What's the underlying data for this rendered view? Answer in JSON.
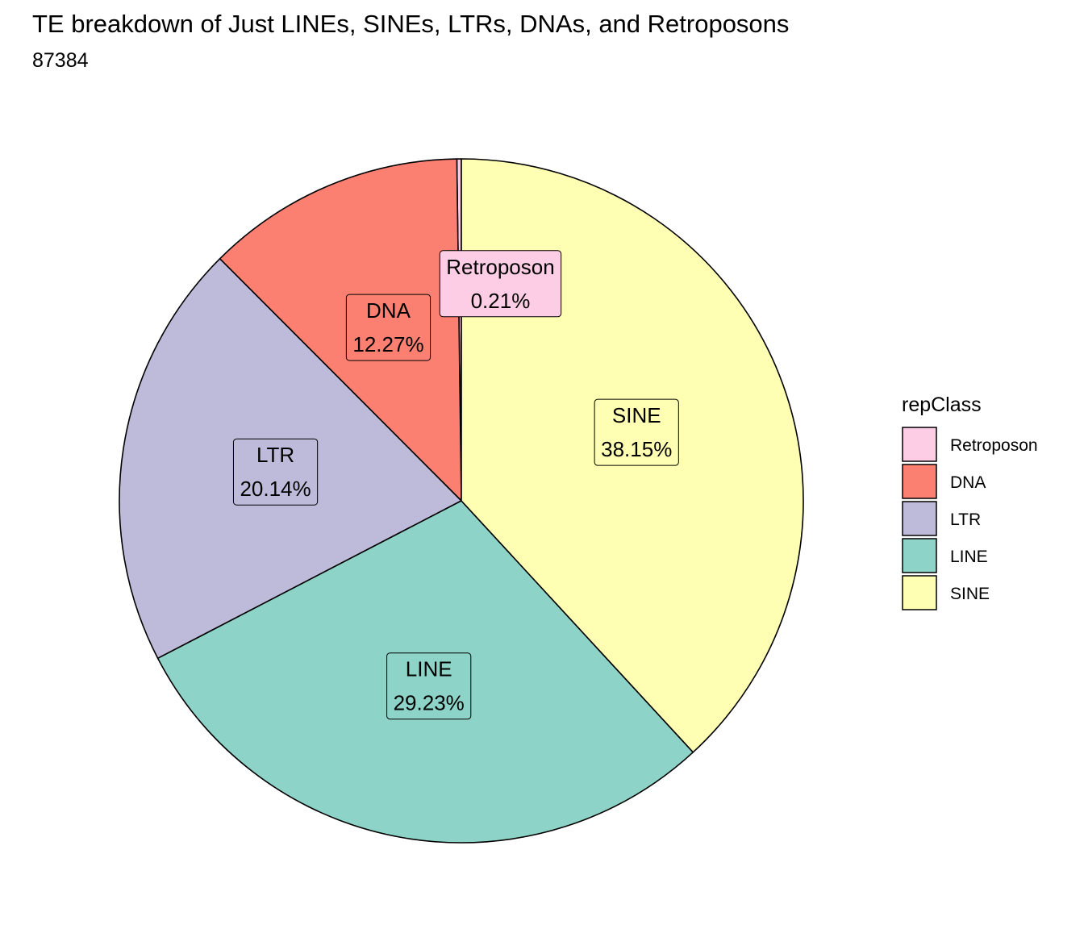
{
  "chart_data": {
    "type": "pie",
    "title": "TE breakdown of Just LINEs, SINEs, LTRs, DNAs, and Retroposons",
    "subtitle": "87384",
    "legend": {
      "title": "repClass",
      "position": "right"
    },
    "slices": [
      {
        "name": "Retroposon",
        "value": 0.21,
        "label": "0.21%",
        "color": "#FCCDE5"
      },
      {
        "name": "DNA",
        "value": 12.27,
        "label": "12.27%",
        "color": "#FB8072"
      },
      {
        "name": "LTR",
        "value": 20.14,
        "label": "20.14%",
        "color": "#BEBADA"
      },
      {
        "name": "LINE",
        "value": 29.23,
        "label": "29.23%",
        "color": "#8DD3C7"
      },
      {
        "name": "SINE",
        "value": 38.15,
        "label": "38.15%",
        "color": "#FFFFB3"
      }
    ],
    "slice_order_counterclockwise_from_top": [
      "Retroposon",
      "DNA",
      "LTR",
      "LINE",
      "SINE"
    ],
    "grid": false
  }
}
